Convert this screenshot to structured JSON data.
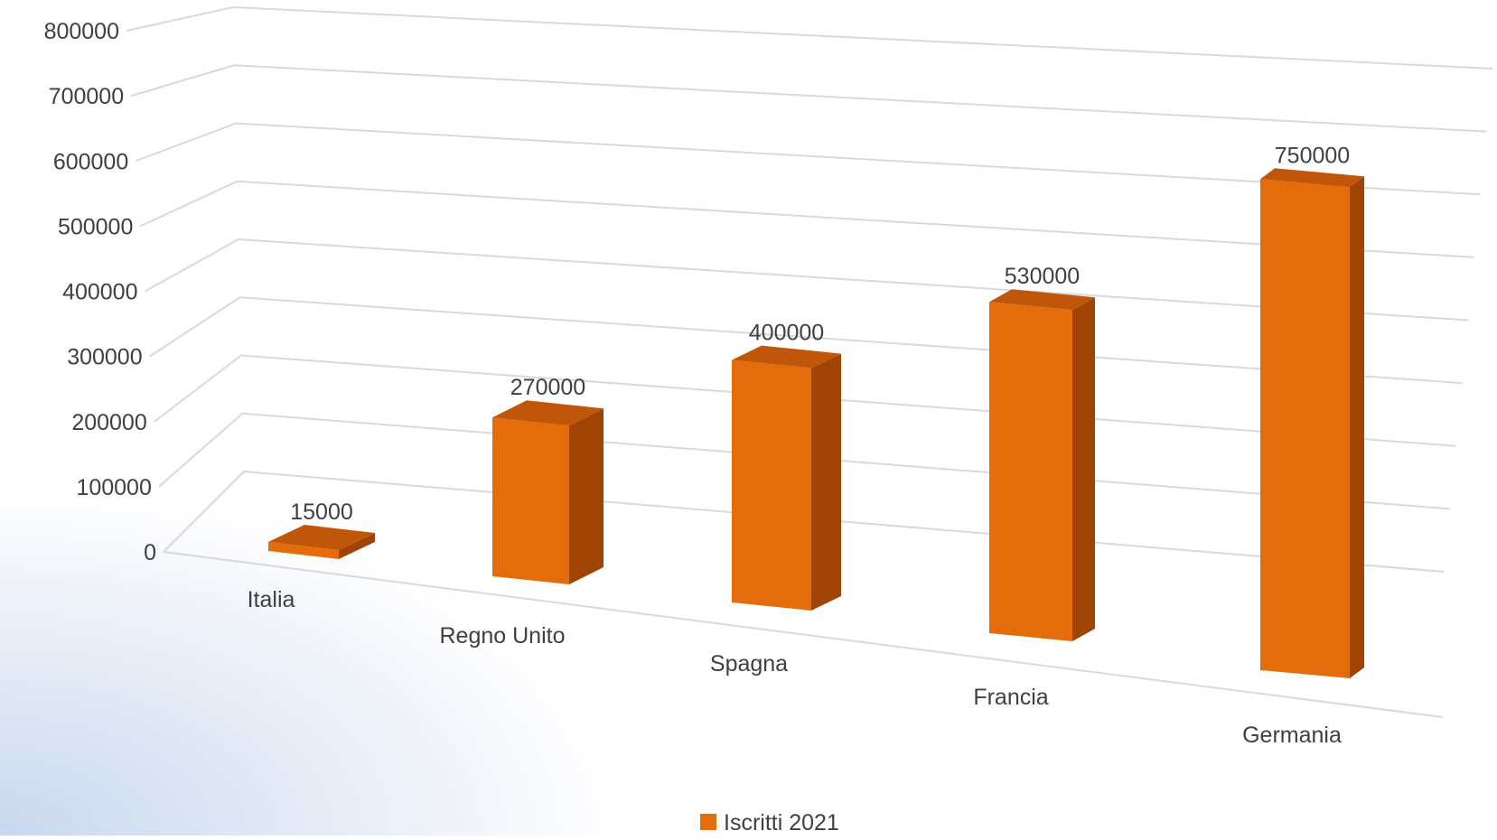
{
  "chart_data": {
    "type": "bar",
    "style": "3d-perspective-column",
    "categories": [
      "Italia",
      "Regno Unito",
      "Spagna",
      "Francia",
      "Germania"
    ],
    "series": [
      {
        "name": "Iscritti 2021",
        "values": [
          15000,
          270000,
          400000,
          530000,
          750000
        ]
      }
    ],
    "data_labels": [
      "15000",
      "270000",
      "400000",
      "530000",
      "750000"
    ],
    "y_ticks": [
      "0",
      "100000",
      "200000",
      "300000",
      "400000",
      "500000",
      "600000",
      "700000",
      "800000"
    ],
    "ylim": [
      0,
      800000
    ],
    "grid": true,
    "legend": {
      "position": "bottom",
      "label": "Iscritti 2021"
    },
    "colors": {
      "front": "#E46C0A",
      "side": "#A04406",
      "top": "#C0560A",
      "grid": "#D9D9D9",
      "text": "#404040",
      "background_accent": "#C9D8EE"
    }
  }
}
